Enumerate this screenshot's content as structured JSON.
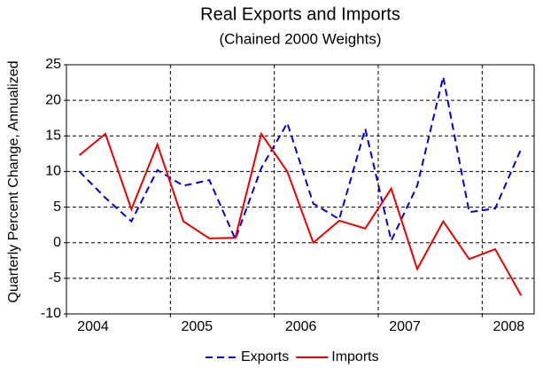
{
  "chart_data": {
    "type": "line",
    "title": "Real Exports and Imports",
    "subtitle": "(Chained 2000 Weights)",
    "y_label": "Quarterly Percent Change, Annualized",
    "x": [
      2004.125,
      2004.375,
      2004.625,
      2004.875,
      2005.125,
      2005.375,
      2005.625,
      2005.875,
      2006.125,
      2006.375,
      2006.625,
      2006.875,
      2007.125,
      2007.375,
      2007.625,
      2007.875,
      2008.125,
      2008.375
    ],
    "series": [
      {
        "name": "Exports",
        "color": "#0000dd",
        "dashed": true,
        "values": [
          10,
          6.3,
          3,
          10.2,
          8,
          8.8,
          0.5,
          10.5,
          16.8,
          5.5,
          3.3,
          16,
          0.3,
          8,
          23.3,
          4.3,
          4.8,
          13.2
        ]
      },
      {
        "name": "Imports",
        "color": "#ee0000",
        "dashed": false,
        "values": [
          12.3,
          15.3,
          4.7,
          13.8,
          3,
          0.6,
          0.7,
          15.3,
          10,
          0,
          3.1,
          2,
          7.6,
          -3.7,
          3,
          -2.3,
          -0.9,
          -7.4
        ]
      }
    ],
    "xlim": [
      2004,
      2008.5
    ],
    "xticks": [
      2004,
      2005,
      2006,
      2007,
      2008
    ],
    "ylim": [
      -10,
      25
    ],
    "yticks": [
      -10,
      -5,
      0,
      5,
      10,
      15,
      20,
      25
    ],
    "grid": true,
    "legend": "bottom"
  }
}
